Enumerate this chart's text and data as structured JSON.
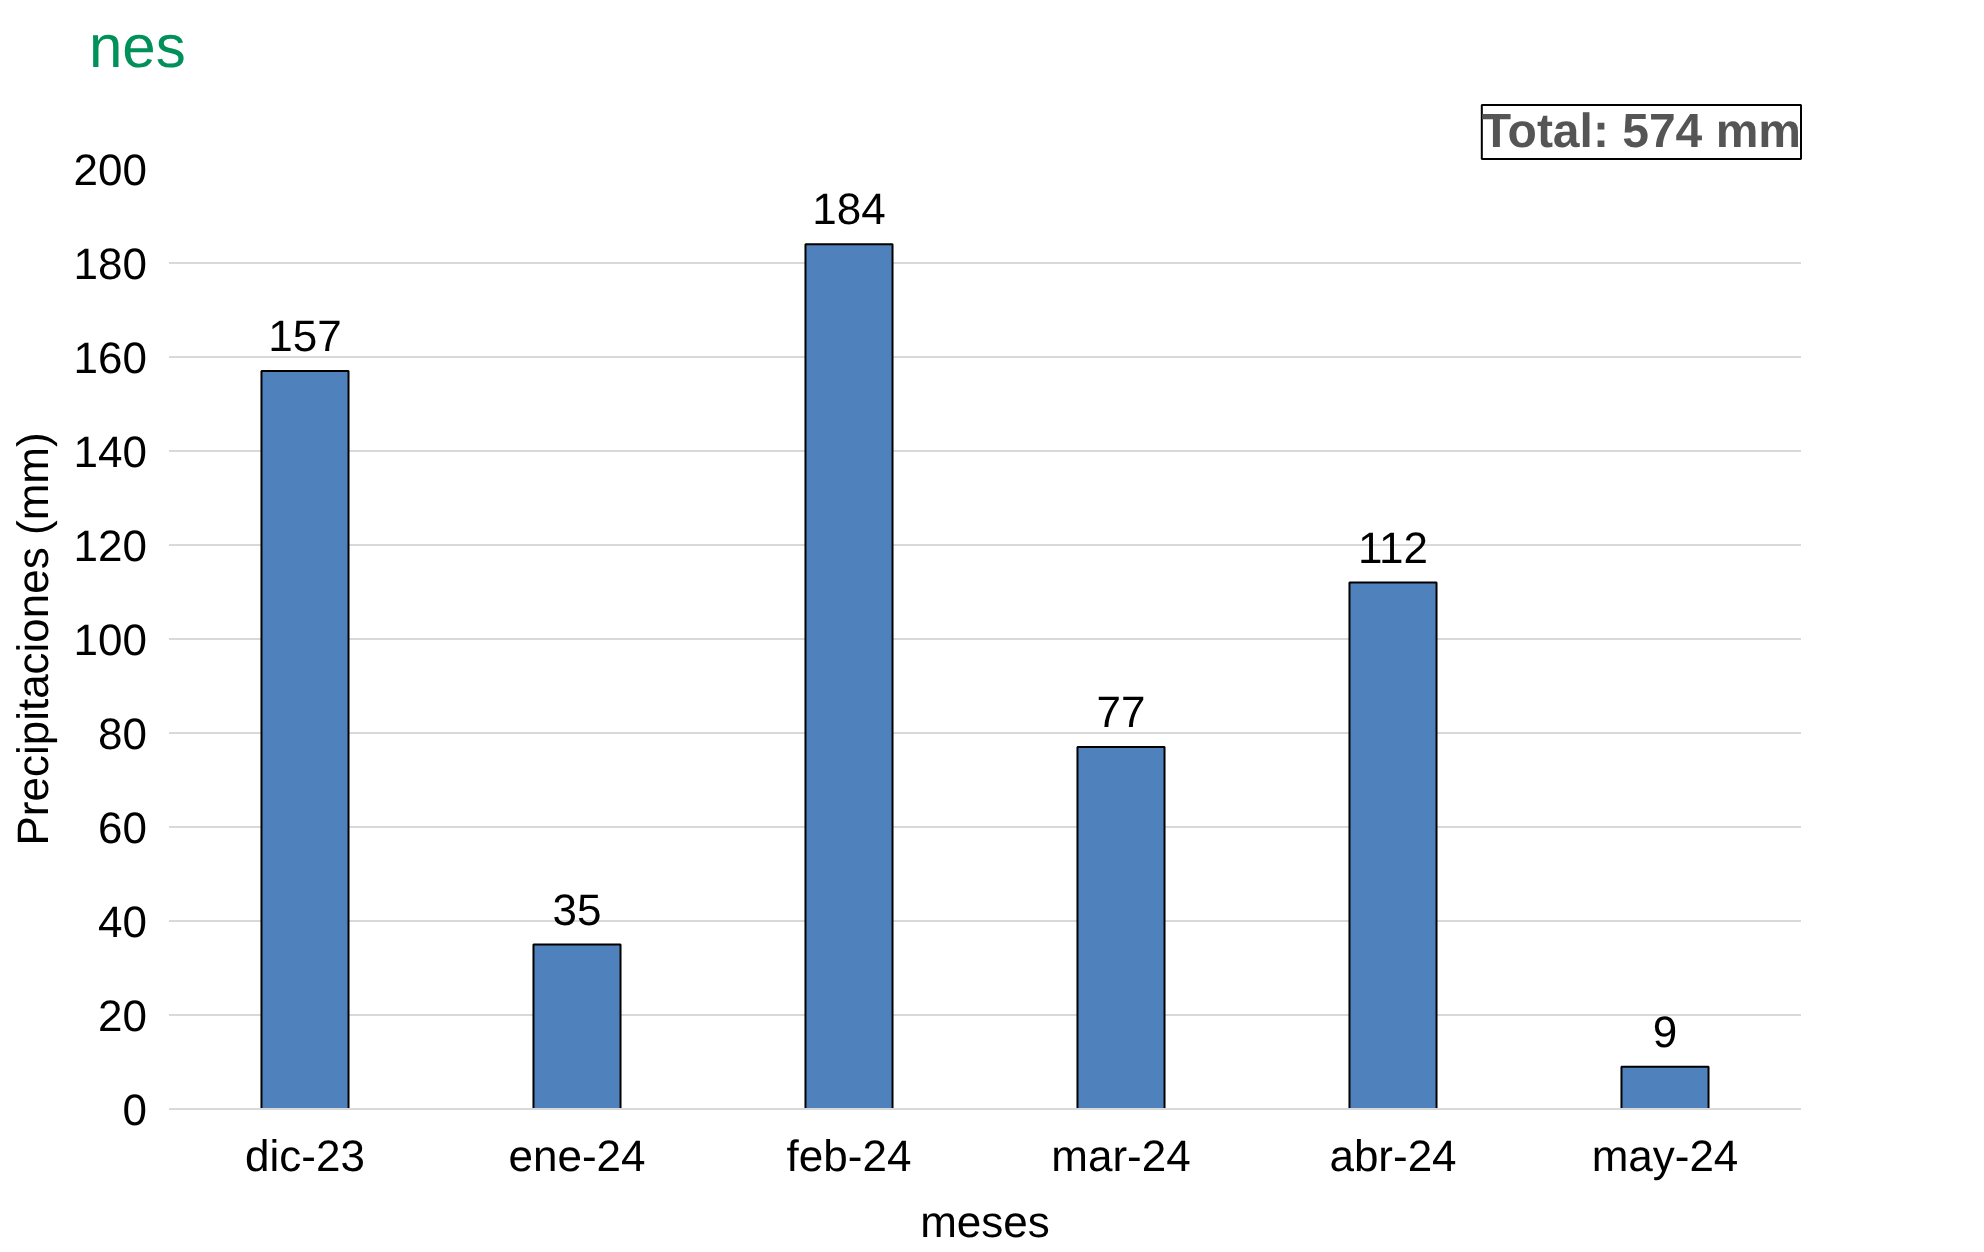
{
  "chart_data": {
    "type": "bar",
    "title": "nes",
    "categories": [
      "dic-23",
      "ene-24",
      "feb-24",
      "mar-24",
      "abr-24",
      "may-24"
    ],
    "values": [
      157,
      35,
      184,
      77,
      112,
      9
    ],
    "color": "#4f81bd",
    "xlabel": "meses",
    "ylabel": "Precipitaciones (mm)",
    "ylim": [
      0,
      200
    ],
    "yticks": [
      0,
      20,
      40,
      60,
      80,
      100,
      120,
      140,
      160,
      180,
      200
    ],
    "grid": "y",
    "data_labels": true,
    "annotations": [
      "Total: 574 mm"
    ]
  }
}
